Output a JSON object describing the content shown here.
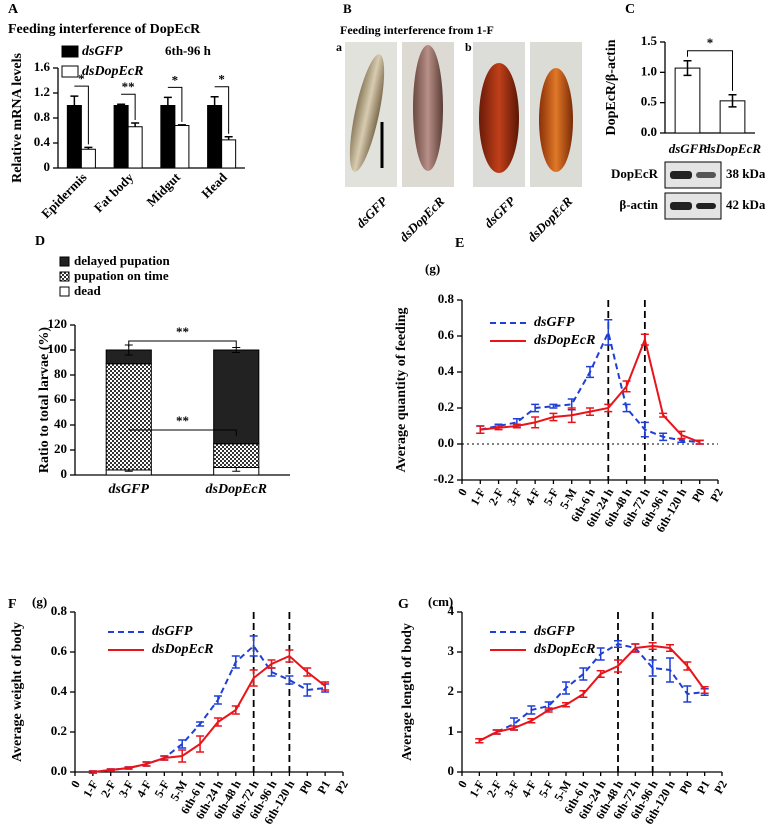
{
  "chart_data": [
    {
      "type": "grouped_bar",
      "panel": "A",
      "title": "Feeding interference of DopEcR",
      "annotation": "6th-96 h",
      "ylabel": "Relative mRNA levels",
      "categories": [
        "Epidermis",
        "Fat body",
        "Midgut",
        "Head"
      ],
      "series": [
        {
          "name": "dsGFP",
          "color": "#000000",
          "values": [
            1.0,
            1.0,
            1.0,
            1.0
          ],
          "errors": [
            0.15,
            0.02,
            0.13,
            0.14
          ]
        },
        {
          "name": "dsDopEcR",
          "color": "#ffffff",
          "values": [
            0.3,
            0.66,
            0.68,
            0.45
          ],
          "errors": [
            0.03,
            0.06,
            0.01,
            0.05
          ]
        }
      ],
      "significance": [
        "*",
        "**",
        "*",
        "*"
      ],
      "ylim": [
        0,
        1.6
      ],
      "yticks": [
        0,
        0.4,
        0.8,
        1.2,
        1.6
      ]
    },
    {
      "type": "bar",
      "panel": "C",
      "ylabel": "DopEcR/β-actin",
      "categories": [
        "dsGFP",
        "dsDopEcR"
      ],
      "values": [
        1.07,
        0.53
      ],
      "errors": [
        0.12,
        0.1
      ],
      "color": "#ffffff",
      "significance": [
        "*"
      ],
      "ylim": [
        0,
        1.5
      ],
      "yticks": [
        {
          "value": 0,
          "label": "0.0"
        },
        0.5,
        {
          "value": 1,
          "label": "1.0"
        },
        1.5
      ],
      "blot": {
        "bands": [
          "DopEcR",
          "β-actin"
        ],
        "sizes": [
          "38 kDa",
          "42 kDa"
        ]
      }
    },
    {
      "type": "stacked_bar",
      "panel": "D",
      "ylabel": "Ratio to total larvae (%)",
      "categories": [
        "dsGFP",
        "dsDopEcR"
      ],
      "series": [
        {
          "name": "delayed pupation",
          "color": "#222222",
          "values": [
            11,
            75
          ],
          "errors": [
            4,
            2
          ]
        },
        {
          "name": "pupation on time",
          "color": "#555555",
          "pattern": "checker",
          "values": [
            85,
            19
          ]
        },
        {
          "name": "dead",
          "color": "#ffffff",
          "values": [
            4,
            6
          ],
          "errors": [
            1,
            3
          ]
        }
      ],
      "significance": [
        "**",
        "**"
      ],
      "ylim": [
        0,
        120
      ],
      "yticks": [
        0,
        20,
        40,
        60,
        80,
        100,
        120
      ]
    },
    {
      "type": "line",
      "panel": "E",
      "unit": "(g)",
      "ylabel": "Average quantity of feeding",
      "categories": [
        "0",
        "1-F",
        "2-F",
        "3-F",
        "4-F",
        "5-F",
        "5-M",
        "6th-6 h",
        "6th-24 h",
        "6th-48 h",
        "6th-72 h",
        "6th-96 h",
        "6th-120 h",
        "P0",
        "P2"
      ],
      "series": [
        {
          "name": "dsGFP",
          "color": "#1f3fd6",
          "dashed": true,
          "values": [
            null,
            0.08,
            0.1,
            0.12,
            0.2,
            0.21,
            0.22,
            0.4,
            0.62,
            0.2,
            0.08,
            0.04,
            0.02,
            0.01,
            null
          ],
          "errors": [
            null,
            0.02,
            0.01,
            0.02,
            0.02,
            0.01,
            0.03,
            0.03,
            0.07,
            0.02,
            0.04,
            0.02,
            0.01,
            0.01,
            null
          ]
        },
        {
          "name": "dsDopEcR",
          "color": "#e8141a",
          "dashed": false,
          "values": [
            null,
            0.08,
            0.09,
            0.1,
            0.12,
            0.15,
            0.16,
            0.18,
            0.2,
            0.32,
            0.58,
            0.16,
            0.05,
            0.01,
            null
          ],
          "errors": [
            null,
            0.02,
            0.01,
            0.01,
            0.03,
            0.02,
            0.04,
            0.02,
            0.02,
            0.03,
            0.03,
            0.01,
            0.02,
            0.01,
            null
          ]
        }
      ],
      "vlines": [
        8,
        10
      ],
      "ref_line": 0,
      "ylim": [
        -0.2,
        0.8
      ],
      "yticks": [
        -0.2,
        {
          "value": 0,
          "label": "0.0"
        },
        0.2,
        0.4,
        0.6,
        0.8
      ]
    },
    {
      "type": "line",
      "panel": "F",
      "unit": "(g)",
      "ylabel": "Average weight of body",
      "categories": [
        "0",
        "1-F",
        "2-F",
        "3-F",
        "4-F",
        "5-F",
        "5-M",
        "6th-6 h",
        "6th-24 h",
        "6th-48 h",
        "6th-72 h",
        "6th-96 h",
        "6th-120 h",
        "P0",
        "P1",
        "P2"
      ],
      "series": [
        {
          "name": "dsGFP",
          "color": "#1f3fd6",
          "dashed": true,
          "values": [
            null,
            0.0,
            0.01,
            0.02,
            0.04,
            0.07,
            0.14,
            0.24,
            0.36,
            0.55,
            0.63,
            0.5,
            0.46,
            0.41,
            0.42,
            null
          ],
          "errors": [
            null,
            0.005,
            0.005,
            0.005,
            0.01,
            0.01,
            0.02,
            0.01,
            0.02,
            0.03,
            0.05,
            0.02,
            0.02,
            0.03,
            0.02,
            null
          ]
        },
        {
          "name": "dsDopEcR",
          "color": "#e8141a",
          "dashed": false,
          "values": [
            null,
            0.0,
            0.01,
            0.02,
            0.04,
            0.07,
            0.08,
            0.14,
            0.25,
            0.31,
            0.47,
            0.54,
            0.58,
            0.5,
            0.43,
            null
          ],
          "errors": [
            null,
            0.005,
            0.005,
            0.005,
            0.01,
            0.01,
            0.03,
            0.04,
            0.02,
            0.02,
            0.04,
            0.02,
            0.03,
            0.02,
            0.02,
            null
          ]
        }
      ],
      "vlines": [
        10,
        12
      ],
      "ylim": [
        0,
        0.8
      ],
      "yticks": [
        {
          "value": 0,
          "label": "0.0"
        },
        0.2,
        0.4,
        0.6,
        0.8
      ]
    },
    {
      "type": "line",
      "panel": "G",
      "unit": "(cm)",
      "ylabel": "Average length of body",
      "categories": [
        "0",
        "1-F",
        "2-F",
        "3-F",
        "4-F",
        "5-F",
        "5-M",
        "6th-6 h",
        "6th-24 h",
        "6th-48 h",
        "6th-72 h",
        "6th-96 h",
        "6th-120 h",
        "P0",
        "P1",
        "P2"
      ],
      "series": [
        {
          "name": "dsGFP",
          "color": "#1f3fd6",
          "dashed": true,
          "values": [
            null,
            0.78,
            1.0,
            1.2,
            1.55,
            1.65,
            2.1,
            2.45,
            2.95,
            3.2,
            3.1,
            2.6,
            2.55,
            1.95,
            2.0,
            null
          ],
          "errors": [
            null,
            0.05,
            0.05,
            0.15,
            0.1,
            0.1,
            0.15,
            0.15,
            0.15,
            0.08,
            0.1,
            0.2,
            0.3,
            0.2,
            0.08,
            null
          ]
        },
        {
          "name": "dsDopEcR",
          "color": "#e8141a",
          "dashed": false,
          "values": [
            null,
            0.78,
            1.0,
            1.1,
            1.28,
            1.55,
            1.68,
            1.95,
            2.45,
            2.65,
            3.1,
            3.15,
            3.1,
            2.65,
            2.05,
            null
          ],
          "errors": [
            null,
            0.05,
            0.05,
            0.05,
            0.05,
            0.05,
            0.05,
            0.08,
            0.08,
            0.15,
            0.1,
            0.08,
            0.08,
            0.1,
            0.08,
            null
          ]
        }
      ],
      "vlines": [
        9,
        11
      ],
      "ylim": [
        0,
        4
      ],
      "yticks": [
        0,
        1,
        2,
        3,
        4
      ]
    }
  ],
  "photo_panel": {
    "panel": "B",
    "title": "Feeding interference from 1-F",
    "groups": [
      {
        "label": "a",
        "items": [
          "dsGFP",
          "dsDopEcR"
        ]
      },
      {
        "label": "b",
        "items": [
          "dsGFP",
          "dsDopEcR"
        ]
      }
    ]
  }
}
